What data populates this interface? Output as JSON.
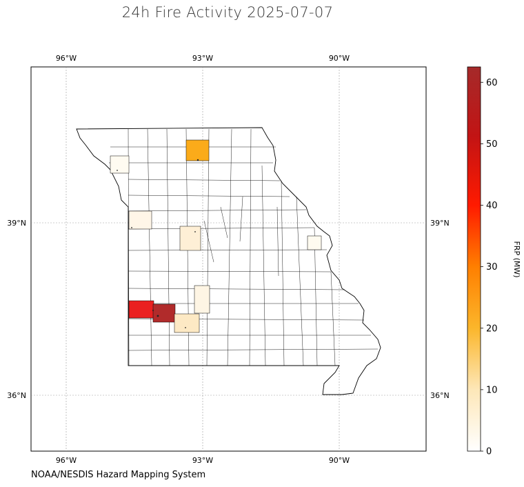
{
  "title": "24h Fire Activity 2025-07-07",
  "credit": "NOAA/NESDIS Hazard Mapping System",
  "colorbar": {
    "label": "FRP (MW)",
    "ticks": [
      "0",
      "10",
      "20",
      "30",
      "40",
      "50",
      "60"
    ],
    "range": [
      0,
      62.5
    ],
    "colors": [
      "#ffffff",
      "#fde7b8",
      "#fbb62b",
      "#ff7f00",
      "#ff1a00",
      "#c21414",
      "#a52a2a"
    ]
  },
  "map": {
    "region": "Missouri",
    "lon_ticks": [
      "96°W",
      "93°W",
      "90°W"
    ],
    "lat_ticks": [
      "39°N",
      "36°N"
    ],
    "gridlines": true
  },
  "chart_data": {
    "type": "heatmap",
    "title": "24h Fire Activity 2025-07-07",
    "colorbar_label": "FRP (MW)",
    "colorbar_range": [
      0,
      62.5
    ],
    "highlighted_counties": [
      {
        "lon": -93.1,
        "lat": 40.1,
        "frp": 22
      },
      {
        "lon": -94.9,
        "lat": 39.9,
        "frp": 1
      },
      {
        "lon": -94.4,
        "lat": 38.9,
        "frp": 2
      },
      {
        "lon": -93.3,
        "lat": 38.7,
        "frp": 5
      },
      {
        "lon": -92.9,
        "lat": 37.6,
        "frp": 2
      },
      {
        "lon": -94.3,
        "lat": 37.4,
        "frp": 48
      },
      {
        "lon": -93.8,
        "lat": 37.3,
        "frp": 62
      },
      {
        "lon": -93.5,
        "lat": 37.1,
        "frp": 6
      },
      {
        "lon": -90.4,
        "lat": 38.8,
        "frp": 1
      }
    ]
  }
}
